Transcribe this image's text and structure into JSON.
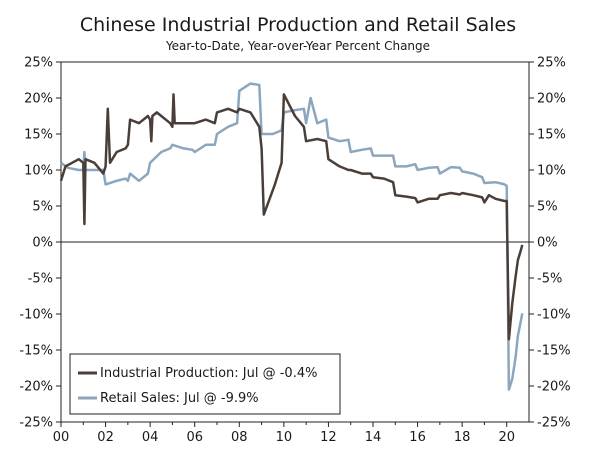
{
  "chart_data": {
    "type": "line",
    "title": "Chinese Industrial Production and Retail Sales",
    "subtitle": "Year-to-Date, Year-over-Year Percent Change",
    "xlabel": "",
    "ylabel": "",
    "xlim": [
      2000,
      2021
    ],
    "ylim": [
      -25,
      25
    ],
    "x_ticks": [
      2000,
      2002,
      2004,
      2006,
      2008,
      2010,
      2012,
      2014,
      2016,
      2018,
      2020
    ],
    "x_tick_labels": [
      "00",
      "02",
      "04",
      "06",
      "08",
      "10",
      "12",
      "14",
      "16",
      "18",
      "20"
    ],
    "y_ticks": [
      25,
      20,
      15,
      10,
      5,
      0,
      -5,
      -10,
      -15,
      -20,
      -25
    ],
    "y_tick_labels": [
      "25%",
      "20%",
      "15%",
      "10%",
      "5%",
      "0%",
      "-5%",
      "-10%",
      "-15%",
      "-20%",
      "-25%"
    ],
    "legend_position": "bottom-left",
    "series": [
      {
        "name": "Industrial Production",
        "legend_label": "Industrial Production: Jul @ -0.4%",
        "color": "#4a3f38",
        "points": [
          [
            2000.0,
            8.5
          ],
          [
            2000.2,
            10.5
          ],
          [
            2000.5,
            11.0
          ],
          [
            2000.8,
            11.5
          ],
          [
            2001.0,
            11.0
          ],
          [
            2001.05,
            2.5
          ],
          [
            2001.1,
            11.5
          ],
          [
            2001.5,
            11.0
          ],
          [
            2001.9,
            9.5
          ],
          [
            2002.0,
            10.5
          ],
          [
            2002.1,
            18.5
          ],
          [
            2002.2,
            11.0
          ],
          [
            2002.5,
            12.5
          ],
          [
            2002.9,
            13.0
          ],
          [
            2003.0,
            13.5
          ],
          [
            2003.1,
            17.0
          ],
          [
            2003.5,
            16.5
          ],
          [
            2003.9,
            17.5
          ],
          [
            2004.0,
            17.0
          ],
          [
            2004.05,
            14.0
          ],
          [
            2004.1,
            17.5
          ],
          [
            2004.3,
            18.0
          ],
          [
            2004.5,
            17.5
          ],
          [
            2004.9,
            16.5
          ],
          [
            2005.0,
            16.0
          ],
          [
            2005.05,
            20.5
          ],
          [
            2005.1,
            16.5
          ],
          [
            2005.5,
            16.5
          ],
          [
            2005.9,
            16.5
          ],
          [
            2006.0,
            16.5
          ],
          [
            2006.5,
            17.0
          ],
          [
            2006.9,
            16.5
          ],
          [
            2007.0,
            18.0
          ],
          [
            2007.5,
            18.5
          ],
          [
            2007.9,
            18.0
          ],
          [
            2008.0,
            18.5
          ],
          [
            2008.5,
            18.0
          ],
          [
            2008.9,
            16.0
          ],
          [
            2009.0,
            13.0
          ],
          [
            2009.1,
            3.8
          ],
          [
            2009.3,
            5.5
          ],
          [
            2009.6,
            8.0
          ],
          [
            2009.9,
            11.0
          ],
          [
            2010.0,
            20.5
          ],
          [
            2010.5,
            17.5
          ],
          [
            2010.9,
            16.0
          ],
          [
            2011.0,
            14.0
          ],
          [
            2011.5,
            14.3
          ],
          [
            2011.9,
            14.0
          ],
          [
            2012.0,
            11.5
          ],
          [
            2012.5,
            10.5
          ],
          [
            2012.9,
            10.0
          ],
          [
            2013.0,
            10.0
          ],
          [
            2013.5,
            9.5
          ],
          [
            2013.9,
            9.5
          ],
          [
            2014.0,
            9.0
          ],
          [
            2014.5,
            8.8
          ],
          [
            2014.9,
            8.3
          ],
          [
            2015.0,
            6.5
          ],
          [
            2015.5,
            6.3
          ],
          [
            2015.9,
            6.1
          ],
          [
            2016.0,
            5.5
          ],
          [
            2016.5,
            6.0
          ],
          [
            2016.9,
            6.0
          ],
          [
            2017.0,
            6.5
          ],
          [
            2017.5,
            6.8
          ],
          [
            2017.9,
            6.6
          ],
          [
            2018.0,
            6.8
          ],
          [
            2018.5,
            6.5
          ],
          [
            2018.9,
            6.2
          ],
          [
            2019.0,
            5.5
          ],
          [
            2019.2,
            6.5
          ],
          [
            2019.5,
            6.0
          ],
          [
            2019.9,
            5.7
          ],
          [
            2020.0,
            5.7
          ],
          [
            2020.1,
            -13.5
          ],
          [
            2020.25,
            -8.5
          ],
          [
            2020.4,
            -4.8
          ],
          [
            2020.5,
            -2.5
          ],
          [
            2020.6,
            -1.5
          ],
          [
            2020.7,
            -0.4
          ]
        ]
      },
      {
        "name": "Retail Sales",
        "legend_label": "Retail Sales: Jul @ -9.9%",
        "color": "#8ba6bd",
        "points": [
          [
            2000.0,
            11.0
          ],
          [
            2000.3,
            10.3
          ],
          [
            2000.8,
            10.0
          ],
          [
            2001.0,
            10.0
          ],
          [
            2001.05,
            12.5
          ],
          [
            2001.1,
            10.0
          ],
          [
            2001.5,
            10.0
          ],
          [
            2001.9,
            10.0
          ],
          [
            2002.0,
            8.0
          ],
          [
            2002.5,
            8.5
          ],
          [
            2002.9,
            8.8
          ],
          [
            2003.0,
            8.5
          ],
          [
            2003.1,
            9.5
          ],
          [
            2003.5,
            8.5
          ],
          [
            2003.9,
            9.5
          ],
          [
            2004.0,
            11.0
          ],
          [
            2004.5,
            12.5
          ],
          [
            2004.9,
            13.0
          ],
          [
            2005.0,
            13.5
          ],
          [
            2005.5,
            13.0
          ],
          [
            2005.9,
            12.8
          ],
          [
            2006.0,
            12.5
          ],
          [
            2006.5,
            13.5
          ],
          [
            2006.9,
            13.5
          ],
          [
            2007.0,
            15.0
          ],
          [
            2007.5,
            16.0
          ],
          [
            2007.9,
            16.5
          ],
          [
            2008.0,
            21.0
          ],
          [
            2008.5,
            22.0
          ],
          [
            2008.9,
            21.8
          ],
          [
            2009.0,
            15.0
          ],
          [
            2009.5,
            15.0
          ],
          [
            2009.9,
            15.5
          ],
          [
            2010.0,
            18.0
          ],
          [
            2010.5,
            18.3
          ],
          [
            2010.9,
            18.5
          ],
          [
            2011.0,
            16.5
          ],
          [
            2011.2,
            20.0
          ],
          [
            2011.5,
            16.5
          ],
          [
            2011.9,
            17.0
          ],
          [
            2012.0,
            14.5
          ],
          [
            2012.5,
            14.0
          ],
          [
            2012.9,
            14.2
          ],
          [
            2013.0,
            12.5
          ],
          [
            2013.5,
            12.8
          ],
          [
            2013.9,
            13.0
          ],
          [
            2014.0,
            12.0
          ],
          [
            2014.5,
            12.0
          ],
          [
            2014.9,
            12.0
          ],
          [
            2015.0,
            10.5
          ],
          [
            2015.5,
            10.5
          ],
          [
            2015.9,
            10.8
          ],
          [
            2016.0,
            10.0
          ],
          [
            2016.5,
            10.3
          ],
          [
            2016.9,
            10.4
          ],
          [
            2017.0,
            9.5
          ],
          [
            2017.5,
            10.4
          ],
          [
            2017.9,
            10.3
          ],
          [
            2018.0,
            9.8
          ],
          [
            2018.5,
            9.5
          ],
          [
            2018.9,
            9.0
          ],
          [
            2019.0,
            8.2
          ],
          [
            2019.5,
            8.3
          ],
          [
            2019.9,
            8.0
          ],
          [
            2020.0,
            7.8
          ],
          [
            2020.1,
            -20.5
          ],
          [
            2020.25,
            -19.0
          ],
          [
            2020.4,
            -16.0
          ],
          [
            2020.5,
            -13.0
          ],
          [
            2020.6,
            -11.5
          ],
          [
            2020.7,
            -9.9
          ]
        ]
      }
    ]
  }
}
